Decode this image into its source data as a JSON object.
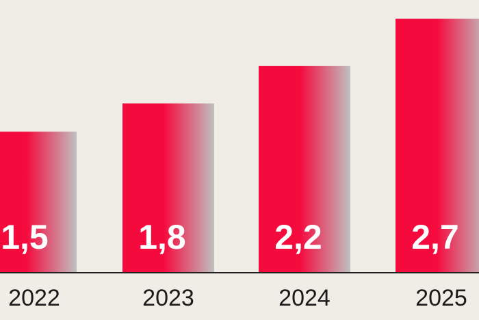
{
  "chart_data": {
    "type": "bar",
    "categories": [
      "2022",
      "2023",
      "2024",
      "2025"
    ],
    "values": [
      1.5,
      1.8,
      2.2,
      2.7
    ],
    "value_labels": [
      "1,5",
      "1,8",
      "2,2",
      "2,7"
    ],
    "title": "",
    "xlabel": "",
    "ylabel": "",
    "ylim": [
      0,
      2.9
    ],
    "grid": false,
    "legend": "none"
  },
  "colors": {
    "bar_start": "#f50a3e",
    "bar_end": "#c0c0c0",
    "background": "#f0ede6",
    "axis": "#222222"
  }
}
